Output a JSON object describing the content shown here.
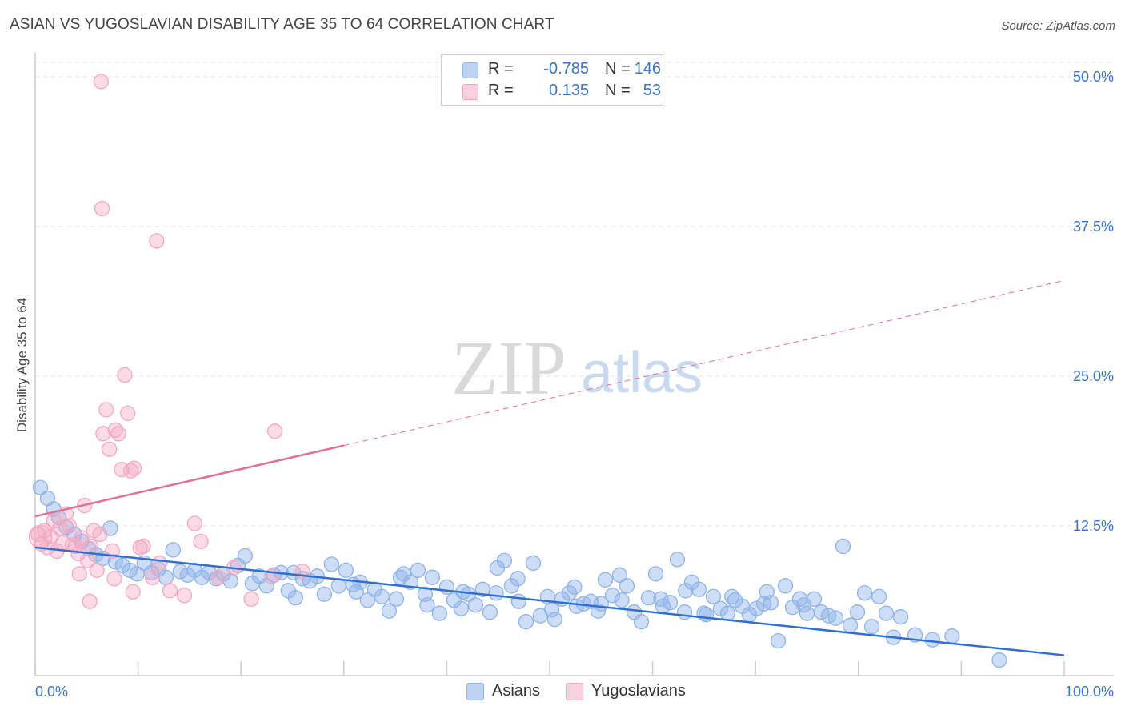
{
  "title": "ASIAN VS YUGOSLAVIAN DISABILITY AGE 35 TO 64 CORRELATION CHART",
  "source": "Source: ZipAtlas.com",
  "watermark": {
    "zip": "ZIP",
    "atlas": "atlas"
  },
  "legend": [
    {
      "name": "Asians",
      "r_label": "R =",
      "r_value": "-0.785",
      "n_label": "N =",
      "n_value": "146",
      "color": "#8fb3e8"
    },
    {
      "name": "Yugoslavians",
      "r_label": "R =",
      "r_value": "0.135",
      "n_label": "N =",
      "n_value": "53",
      "color": "#f4a8c0"
    }
  ],
  "chart_data": {
    "type": "scatter",
    "xlabel": "",
    "ylabel": "Disability Age 35 to 64",
    "xlim": [
      0,
      100
    ],
    "ylim": [
      0,
      50
    ],
    "x_tick_labels": [
      "0.0%",
      "100.0%"
    ],
    "y_tick_labels": [
      "12.5%",
      "25.0%",
      "37.5%",
      "50.0%"
    ],
    "y_ticks": [
      12.5,
      25.0,
      37.5,
      50.0
    ],
    "grid": true,
    "series": [
      {
        "name": "Asians",
        "color": "#8fb3e8",
        "line_color": "#2f6fd0",
        "trend": {
          "x0": 0,
          "y0": 10.7,
          "x1": 100,
          "y1": 1.7,
          "solid_until": 100
        },
        "points": [
          [
            0.5,
            15.7
          ],
          [
            1.2,
            14.8
          ],
          [
            1.8,
            13.9
          ],
          [
            2.3,
            13.2
          ],
          [
            3.0,
            12.4
          ],
          [
            3.8,
            11.8
          ],
          [
            4.5,
            11.2
          ],
          [
            5.2,
            10.6
          ],
          [
            5.9,
            10.1
          ],
          [
            6.6,
            9.8
          ],
          [
            7.3,
            12.3
          ],
          [
            7.8,
            9.5
          ],
          [
            8.5,
            9.2
          ],
          [
            9.2,
            8.8
          ],
          [
            9.9,
            8.5
          ],
          [
            10.6,
            9.4
          ],
          [
            11.3,
            8.6
          ],
          [
            12.0,
            8.9
          ],
          [
            12.7,
            8.2
          ],
          [
            13.4,
            10.5
          ],
          [
            14.1,
            8.7
          ],
          [
            14.8,
            8.4
          ],
          [
            15.5,
            8.8
          ],
          [
            16.2,
            8.2
          ],
          [
            16.9,
            8.6
          ],
          [
            17.6,
            8.1
          ],
          [
            18.3,
            8.5
          ],
          [
            19.0,
            7.9
          ],
          [
            19.7,
            9.2
          ],
          [
            20.4,
            10.0
          ],
          [
            21.1,
            7.7
          ],
          [
            21.8,
            8.3
          ],
          [
            22.5,
            7.5
          ],
          [
            23.2,
            8.4
          ],
          [
            23.9,
            8.6
          ],
          [
            24.6,
            7.1
          ],
          [
            25.3,
            6.5
          ],
          [
            26.0,
            8.1
          ],
          [
            26.7,
            7.9
          ],
          [
            27.4,
            8.3
          ],
          [
            28.1,
            6.8
          ],
          [
            28.8,
            9.3
          ],
          [
            29.5,
            7.5
          ],
          [
            30.2,
            8.8
          ],
          [
            30.9,
            7.6
          ],
          [
            31.6,
            7.8
          ],
          [
            32.3,
            6.3
          ],
          [
            33.0,
            7.2
          ],
          [
            33.7,
            6.6
          ],
          [
            34.4,
            5.4
          ],
          [
            35.1,
            6.4
          ],
          [
            35.8,
            8.5
          ],
          [
            36.5,
            7.8
          ],
          [
            37.2,
            8.8
          ],
          [
            37.9,
            6.8
          ],
          [
            38.6,
            8.2
          ],
          [
            39.3,
            5.2
          ],
          [
            40.0,
            7.4
          ],
          [
            40.7,
            6.3
          ],
          [
            41.4,
            5.6
          ],
          [
            42.1,
            6.8
          ],
          [
            42.8,
            5.9
          ],
          [
            43.5,
            7.2
          ],
          [
            44.2,
            5.3
          ],
          [
            44.9,
            9.0
          ],
          [
            45.6,
            9.6
          ],
          [
            46.3,
            7.5
          ],
          [
            47.0,
            6.2
          ],
          [
            47.7,
            4.5
          ],
          [
            48.4,
            9.4
          ],
          [
            49.1,
            5.0
          ],
          [
            49.8,
            6.6
          ],
          [
            50.5,
            4.7
          ],
          [
            51.2,
            6.4
          ],
          [
            51.9,
            6.9
          ],
          [
            52.6,
            5.8
          ],
          [
            53.3,
            6.0
          ],
          [
            54.0,
            6.2
          ],
          [
            54.7,
            5.4
          ],
          [
            55.4,
            8.0
          ],
          [
            56.1,
            6.7
          ],
          [
            56.8,
            8.4
          ],
          [
            57.5,
            7.5
          ],
          [
            58.2,
            5.3
          ],
          [
            58.9,
            4.5
          ],
          [
            59.6,
            6.5
          ],
          [
            60.3,
            8.5
          ],
          [
            61.0,
            5.8
          ],
          [
            61.7,
            6.1
          ],
          [
            62.4,
            9.7
          ],
          [
            63.1,
            5.3
          ],
          [
            63.8,
            7.8
          ],
          [
            64.5,
            7.2
          ],
          [
            65.2,
            5.1
          ],
          [
            65.9,
            6.6
          ],
          [
            66.6,
            5.6
          ],
          [
            67.3,
            5.2
          ],
          [
            68.0,
            6.3
          ],
          [
            68.7,
            5.8
          ],
          [
            69.4,
            5.1
          ],
          [
            70.1,
            5.6
          ],
          [
            70.8,
            6.0
          ],
          [
            71.5,
            6.1
          ],
          [
            72.2,
            2.9
          ],
          [
            72.9,
            7.5
          ],
          [
            73.6,
            5.7
          ],
          [
            74.3,
            6.4
          ],
          [
            75.0,
            5.2
          ],
          [
            75.7,
            6.4
          ],
          [
            76.4,
            5.3
          ],
          [
            77.1,
            5.0
          ],
          [
            77.8,
            4.8
          ],
          [
            78.5,
            10.8
          ],
          [
            79.2,
            4.2
          ],
          [
            79.9,
            5.3
          ],
          [
            80.6,
            6.9
          ],
          [
            81.3,
            4.1
          ],
          [
            82.0,
            6.6
          ],
          [
            82.7,
            5.2
          ],
          [
            83.4,
            3.2
          ],
          [
            84.1,
            4.9
          ],
          [
            85.5,
            3.4
          ],
          [
            87.2,
            3.0
          ],
          [
            89.1,
            3.3
          ],
          [
            93.7,
            1.3
          ],
          [
            35.5,
            8.2
          ],
          [
            41.6,
            7.0
          ],
          [
            46.9,
            8.1
          ],
          [
            52.4,
            7.4
          ],
          [
            57.0,
            6.3
          ],
          [
            63.2,
            7.1
          ],
          [
            67.7,
            6.6
          ],
          [
            71.1,
            7.0
          ],
          [
            74.7,
            5.9
          ],
          [
            25.1,
            8.6
          ],
          [
            31.2,
            7.0
          ],
          [
            38.1,
            5.9
          ],
          [
            44.8,
            6.9
          ],
          [
            50.2,
            5.5
          ],
          [
            55.0,
            6.0
          ],
          [
            60.8,
            6.4
          ],
          [
            65.0,
            5.2
          ]
        ]
      },
      {
        "name": "Yugoslavians",
        "color": "#f4a8c0",
        "line_color": "#e0709a",
        "trend": {
          "x0": 0,
          "y0": 13.3,
          "x1": 100,
          "y1": 33.0,
          "solid_until": 30
        },
        "points": [
          [
            0.3,
            11.8
          ],
          [
            0.6,
            11.0
          ],
          [
            0.9,
            12.1
          ],
          [
            1.2,
            10.7
          ],
          [
            1.5,
            11.6
          ],
          [
            1.8,
            12.9
          ],
          [
            2.1,
            10.4
          ],
          [
            2.4,
            12.3
          ],
          [
            2.7,
            11.1
          ],
          [
            3.0,
            13.5
          ],
          [
            3.3,
            12.5
          ],
          [
            3.6,
            10.9
          ],
          [
            3.9,
            10.8
          ],
          [
            4.2,
            10.2
          ],
          [
            4.5,
            11.5
          ],
          [
            4.8,
            14.2
          ],
          [
            5.1,
            9.6
          ],
          [
            5.4,
            10.8
          ],
          [
            5.7,
            12.1
          ],
          [
            6.0,
            8.8
          ],
          [
            6.3,
            11.8
          ],
          [
            6.6,
            20.2
          ],
          [
            6.9,
            22.2
          ],
          [
            7.2,
            18.9
          ],
          [
            7.5,
            10.4
          ],
          [
            7.8,
            20.5
          ],
          [
            8.1,
            20.2
          ],
          [
            8.4,
            17.2
          ],
          [
            8.7,
            25.1
          ],
          [
            9.0,
            21.9
          ],
          [
            9.3,
            17.1
          ],
          [
            9.6,
            17.3
          ],
          [
            10.2,
            10.7
          ],
          [
            10.5,
            10.8
          ],
          [
            11.4,
            8.2
          ],
          [
            12.1,
            9.4
          ],
          [
            13.1,
            7.1
          ],
          [
            14.5,
            6.7
          ],
          [
            15.5,
            12.7
          ],
          [
            16.1,
            11.2
          ],
          [
            17.8,
            8.2
          ],
          [
            19.3,
            9.0
          ],
          [
            21.0,
            6.4
          ],
          [
            23.0,
            8.3
          ],
          [
            26.0,
            8.7
          ],
          [
            4.3,
            8.5
          ],
          [
            5.3,
            6.2
          ],
          [
            7.7,
            8.1
          ],
          [
            9.5,
            7.0
          ],
          [
            11.8,
            36.3
          ],
          [
            6.5,
            39.0
          ],
          [
            6.4,
            49.6
          ],
          [
            23.3,
            20.4
          ]
        ]
      }
    ]
  }
}
